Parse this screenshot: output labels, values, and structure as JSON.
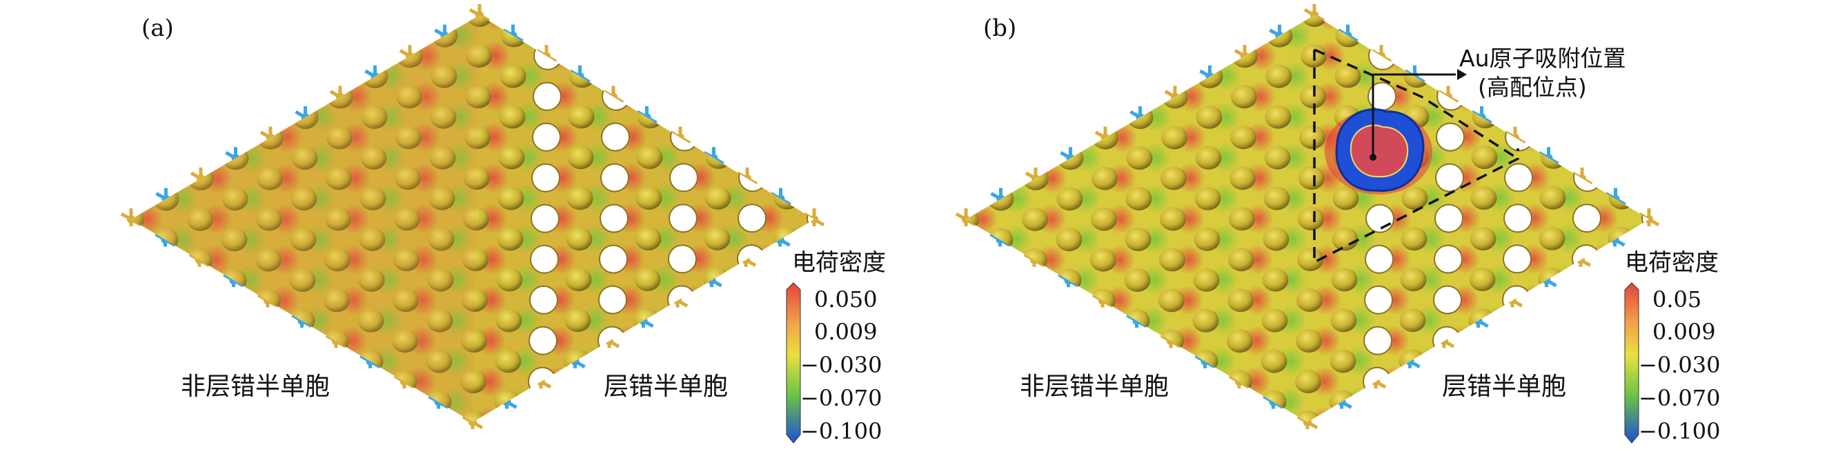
{
  "panels": [
    {
      "label": "(a)",
      "left_region_label": "非层错半单胞",
      "right_region_label": "层错半单胞",
      "colorbar": {
        "title": "电荷密度",
        "ticks": [
          "0.050",
          "0.009",
          "−0.030",
          "−0.070",
          "−0.100"
        ]
      }
    },
    {
      "label": "(b)",
      "left_region_label": "非层错半单胞",
      "right_region_label": "层错半单胞",
      "annotation_line1": "Au原子吸附位置",
      "annotation_line2": "(高配位点)",
      "colorbar": {
        "title": "电荷密度",
        "ticks": [
          "0.05",
          "0.009",
          "−0.030",
          "−0.070",
          "−0.100"
        ]
      }
    }
  ],
  "colors": {
    "surface": "#d6c23a",
    "surface_warm": "#e08a48",
    "green": "#8ccc3c",
    "red": "#e4443c",
    "blue": "#1e4fd6",
    "atom_gold": "#d9ad3c",
    "atom_blue": "#3aa6e6"
  }
}
